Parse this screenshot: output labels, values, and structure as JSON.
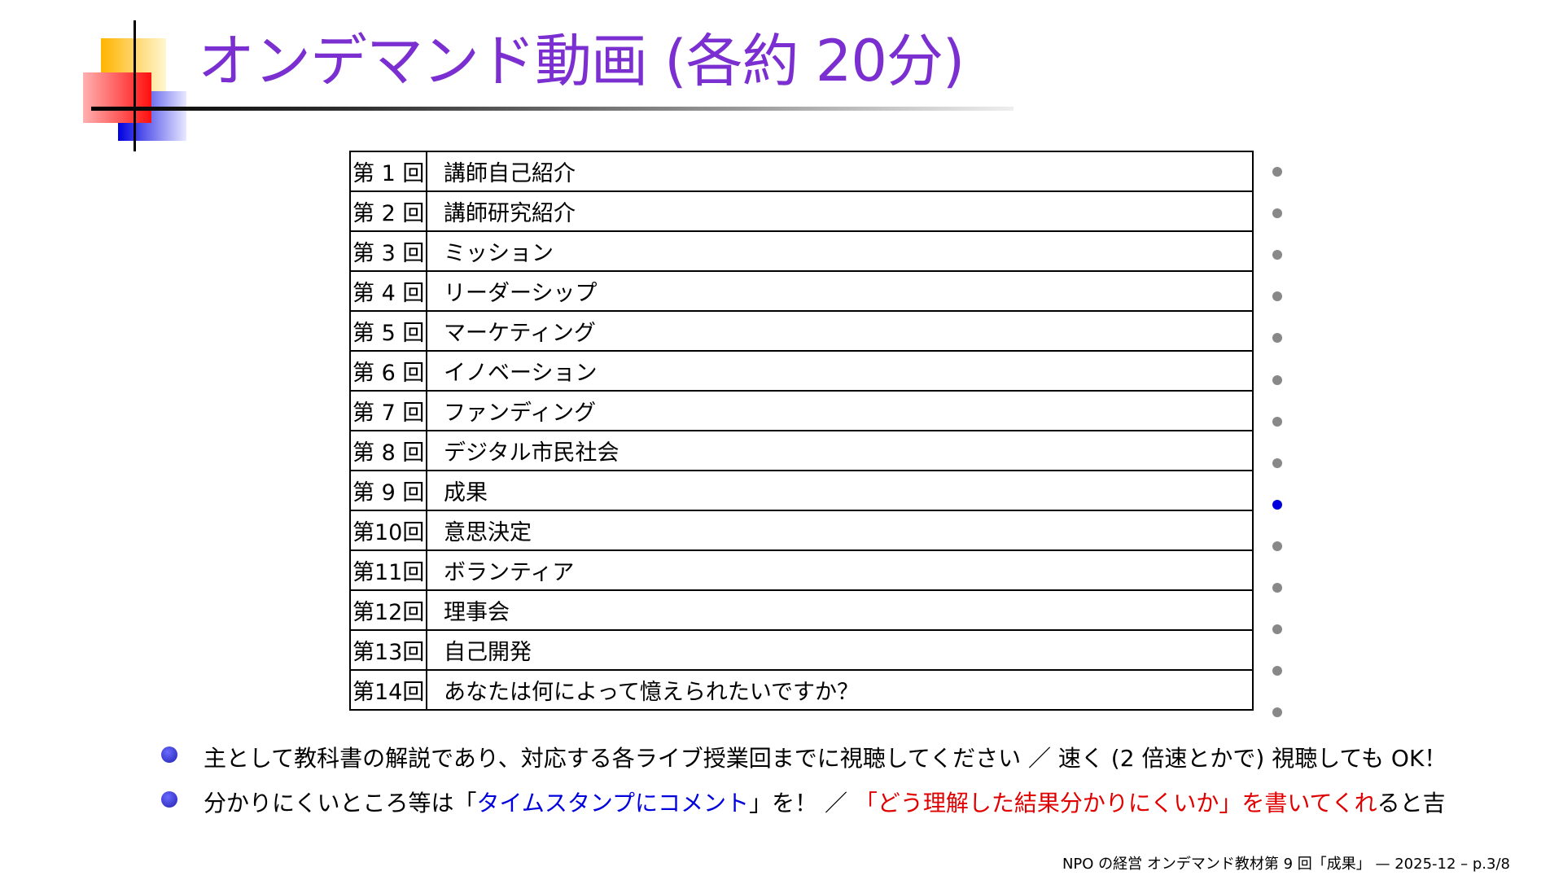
{
  "title": "オンデマンド動画 (各約 20分)",
  "sessions": [
    {
      "num": "第 1 回",
      "topic": "講師自己紹介",
      "active": false
    },
    {
      "num": "第 2 回",
      "topic": "講師研究紹介",
      "active": false
    },
    {
      "num": "第 3 回",
      "topic": "ミッション",
      "active": false
    },
    {
      "num": "第 4 回",
      "topic": "リーダーシップ",
      "active": false
    },
    {
      "num": "第 5 回",
      "topic": "マーケティング",
      "active": false
    },
    {
      "num": "第 6 回",
      "topic": "イノベーション",
      "active": false
    },
    {
      "num": "第 7 回",
      "topic": "ファンディング",
      "active": false
    },
    {
      "num": "第 8 回",
      "topic": "デジタル市民社会",
      "active": false
    },
    {
      "num": "第 9 回",
      "topic": "成果",
      "active": true
    },
    {
      "num": "第10回",
      "topic": "意思決定",
      "active": false
    },
    {
      "num": "第11回",
      "topic": "ボランティア",
      "active": false
    },
    {
      "num": "第12回",
      "topic": "理事会",
      "active": false
    },
    {
      "num": "第13回",
      "topic": "自己開発",
      "active": false
    },
    {
      "num": "第14回",
      "topic": "あなたは何によって憶えられたいですか？",
      "active": false
    }
  ],
  "bullets": {
    "b1": "主として教科書の解説であり、対応する各ライブ授業回までに視聴してください ／ 速く (2 倍速とかで) 視聴しても OK！",
    "b2_a": "分かりにくいところ等は「",
    "b2_blue": "タイムスタンプにコメント",
    "b2_b": "」を！ ／ ",
    "b2_red": "「どう理解した結果分かりにくいか」を書いてくれ",
    "b2_c": "ると吉"
  },
  "footer": "NPO の経営 オンデマンド教材第 9 回「成果」 — 2025-12 – p.3/8",
  "colors": {
    "title": "#7b2fd0",
    "active_dot": "#0000dd",
    "inactive_dot": "#888888",
    "highlight_blue": "#0000dd",
    "highlight_red": "#e00000"
  }
}
